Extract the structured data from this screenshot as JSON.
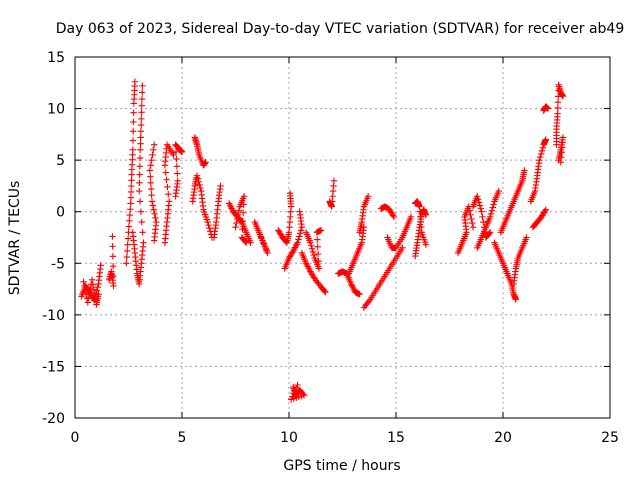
{
  "chart_data": {
    "type": "scatter",
    "title": "Day 063 of 2023, Sidereal Day-to-day VTEC variation (SDTVAR) for receiver ab49",
    "xlabel": "GPS time / hours",
    "ylabel": "SDTVAR / TECUs",
    "xlim": [
      0,
      25
    ],
    "ylim": [
      -20,
      15
    ],
    "xticks": [
      "0",
      "5",
      "10",
      "15",
      "20",
      "25"
    ],
    "yticks": [
      "-20",
      "-15",
      "-10",
      "-5",
      "0",
      "5",
      "10",
      "15"
    ],
    "grid": true,
    "marker": "+",
    "color": "#ff0000",
    "series": [
      {
        "name": "SDTVAR",
        "segments": [
          [
            [
              0.3,
              -8.2
            ],
            [
              0.5,
              -7.2
            ],
            [
              0.7,
              -7.8
            ],
            [
              0.9,
              -8.6
            ],
            [
              1.1,
              -7.0
            ],
            [
              1.2,
              -5.2
            ]
          ],
          [
            [
              0.4,
              -6.8
            ],
            [
              0.6,
              -8.8
            ],
            [
              0.8,
              -6.6
            ],
            [
              1.0,
              -9.0
            ],
            [
              1.1,
              -8.0
            ]
          ],
          [
            [
              1.6,
              -6.6
            ],
            [
              1.7,
              -5.8
            ],
            [
              1.8,
              -7.2
            ],
            [
              1.75,
              -2.4
            ]
          ],
          [
            [
              2.4,
              -5.0
            ],
            [
              2.5,
              -2.0
            ],
            [
              2.6,
              0.8
            ],
            [
              2.65,
              3.6
            ],
            [
              2.7,
              6.0
            ],
            [
              2.75,
              10.5
            ],
            [
              2.8,
              12.6
            ]
          ],
          [
            [
              2.7,
              -2.0
            ],
            [
              2.8,
              -4.0
            ],
            [
              2.9,
              -6.0
            ],
            [
              3.0,
              -7.0
            ],
            [
              3.1,
              -5.0
            ],
            [
              3.2,
              -3.0
            ],
            [
              3.0,
              2.0
            ],
            [
              3.05,
              6.0
            ],
            [
              3.1,
              9.0
            ],
            [
              3.15,
              12.2
            ]
          ],
          [
            [
              3.7,
              -2.8
            ],
            [
              3.8,
              -1.0
            ],
            [
              3.6,
              1.0
            ],
            [
              3.5,
              4.0
            ],
            [
              3.7,
              6.5
            ]
          ],
          [
            [
              4.2,
              -3.0
            ],
            [
              4.3,
              -1.0
            ],
            [
              4.4,
              1.0
            ],
            [
              4.2,
              4.5
            ],
            [
              4.3,
              6.5
            ],
            [
              4.6,
              5.5
            ]
          ],
          [
            [
              4.7,
              1.5
            ],
            [
              4.8,
              3.0
            ],
            [
              4.7,
              6.5
            ],
            [
              4.9,
              6.0
            ],
            [
              5.0,
              5.8
            ]
          ],
          [
            [
              5.6,
              7.2
            ],
            [
              5.7,
              6.5
            ],
            [
              5.8,
              5.5
            ],
            [
              6.0,
              4.5
            ],
            [
              6.1,
              4.8
            ]
          ],
          [
            [
              5.5,
              1.0
            ],
            [
              5.6,
              2.5
            ],
            [
              5.7,
              3.5
            ],
            [
              5.9,
              2.0
            ],
            [
              6.0,
              0.2
            ],
            [
              6.2,
              -1.0
            ],
            [
              6.4,
              -2.5
            ]
          ],
          [
            [
              6.5,
              -2.5
            ],
            [
              6.6,
              -1.0
            ],
            [
              6.7,
              1.0
            ],
            [
              6.8,
              2.5
            ]
          ],
          [
            [
              7.2,
              0.8
            ],
            [
              7.4,
              0.0
            ],
            [
              7.6,
              -0.5
            ],
            [
              7.8,
              -1.0
            ],
            [
              8.0,
              -2.0
            ],
            [
              8.2,
              -3.0
            ]
          ],
          [
            [
              7.5,
              -1.5
            ],
            [
              7.7,
              0.5
            ],
            [
              7.9,
              1.5
            ],
            [
              7.8,
              -2.5
            ],
            [
              8.0,
              -3.0
            ]
          ],
          [
            [
              8.4,
              -1.0
            ],
            [
              8.6,
              -2.0
            ],
            [
              8.8,
              -3.0
            ],
            [
              9.0,
              -4.0
            ],
            [
              8.7,
              -2.5
            ]
          ],
          [
            [
              9.5,
              -1.8
            ],
            [
              9.7,
              -2.5
            ],
            [
              9.9,
              -3.0
            ],
            [
              10.0,
              -2.0
            ],
            [
              10.1,
              0.5
            ],
            [
              10.05,
              1.8
            ]
          ],
          [
            [
              9.8,
              -5.5
            ],
            [
              10.0,
              -4.5
            ],
            [
              10.2,
              -3.8
            ],
            [
              10.4,
              -3.0
            ],
            [
              10.6,
              -1.5
            ],
            [
              10.5,
              0.0
            ]
          ],
          [
            [
              10.6,
              -4.0
            ],
            [
              10.8,
              -5.0
            ],
            [
              11.0,
              -5.8
            ],
            [
              11.2,
              -6.5
            ],
            [
              11.5,
              -7.3
            ],
            [
              11.7,
              -7.8
            ]
          ],
          [
            [
              10.8,
              -2.0
            ],
            [
              11.0,
              -3.0
            ],
            [
              11.2,
              -4.5
            ],
            [
              11.4,
              -5.5
            ],
            [
              11.3,
              -2.0
            ],
            [
              11.5,
              -1.8
            ]
          ],
          [
            [
              11.9,
              1.0
            ],
            [
              12.0,
              0.5
            ],
            [
              12.1,
              3.0
            ]
          ],
          [
            [
              12.3,
              -6.0
            ],
            [
              12.5,
              -5.8
            ],
            [
              12.7,
              -6.0
            ],
            [
              12.9,
              -7.0
            ],
            [
              13.1,
              -7.8
            ],
            [
              13.3,
              -8.0
            ]
          ],
          [
            [
              12.8,
              -6.0
            ],
            [
              13.0,
              -5.0
            ],
            [
              13.2,
              -4.0
            ],
            [
              13.4,
              -3.0
            ],
            [
              13.5,
              -1.5
            ]
          ],
          [
            [
              13.3,
              -2.0
            ],
            [
              13.4,
              -1.0
            ],
            [
              13.5,
              0.5
            ],
            [
              13.7,
              1.5
            ]
          ],
          [
            [
              13.5,
              -9.3
            ],
            [
              13.8,
              -8.5
            ],
            [
              14.1,
              -7.5
            ],
            [
              14.4,
              -6.5
            ],
            [
              14.7,
              -5.5
            ],
            [
              15.0,
              -4.5
            ],
            [
              15.3,
              -3.5
            ]
          ],
          [
            [
              14.3,
              0.3
            ],
            [
              14.5,
              0.5
            ],
            [
              14.7,
              0.2
            ],
            [
              14.9,
              -0.5
            ]
          ],
          [
            [
              14.6,
              -2.5
            ],
            [
              14.8,
              -3.5
            ],
            [
              15.0,
              -3.5
            ],
            [
              15.3,
              -2.5
            ],
            [
              15.5,
              -1.5
            ],
            [
              15.7,
              -0.5
            ]
          ],
          [
            [
              15.9,
              -4.3
            ],
            [
              16.0,
              -3.0
            ],
            [
              16.1,
              -1.5
            ],
            [
              16.2,
              -0.2
            ],
            [
              16.3,
              0.2
            ],
            [
              16.4,
              -0.3
            ]
          ],
          [
            [
              15.9,
              0.8
            ],
            [
              16.0,
              1.0
            ],
            [
              16.1,
              0.5
            ],
            [
              16.2,
              -2.0
            ],
            [
              16.4,
              -3.2
            ]
          ],
          [
            [
              17.9,
              -4.0
            ],
            [
              18.1,
              -3.0
            ],
            [
              18.3,
              -2.0
            ],
            [
              18.2,
              -0.5
            ],
            [
              18.4,
              0.5
            ],
            [
              18.6,
              -1.5
            ]
          ],
          [
            [
              18.8,
              -3.5
            ],
            [
              19.0,
              -2.5
            ],
            [
              19.2,
              -1.5
            ],
            [
              19.4,
              -0.5
            ],
            [
              19.6,
              1.0
            ],
            [
              19.8,
              2.0
            ]
          ],
          [
            [
              18.6,
              0.5
            ],
            [
              18.8,
              1.5
            ],
            [
              19.0,
              0.0
            ],
            [
              19.2,
              -2.5
            ],
            [
              19.4,
              -2.0
            ]
          ],
          [
            [
              19.6,
              -3.0
            ],
            [
              19.8,
              -4.0
            ],
            [
              20.0,
              -5.0
            ],
            [
              20.2,
              -6.0
            ],
            [
              20.4,
              -7.0
            ],
            [
              20.5,
              -8.0
            ],
            [
              20.6,
              -8.5
            ]
          ],
          [
            [
              19.9,
              -2.0
            ],
            [
              20.1,
              -1.0
            ],
            [
              20.3,
              0.0
            ],
            [
              20.5,
              1.0
            ],
            [
              20.7,
              2.0
            ],
            [
              20.9,
              3.0
            ],
            [
              21.0,
              4.0
            ]
          ],
          [
            [
              20.5,
              -7.0
            ],
            [
              20.6,
              -5.5
            ],
            [
              20.7,
              -4.5
            ],
            [
              20.9,
              -3.5
            ],
            [
              21.1,
              -2.5
            ]
          ],
          [
            [
              21.3,
              1.0
            ],
            [
              21.5,
              2.0
            ],
            [
              21.6,
              3.5
            ],
            [
              21.7,
              5.0
            ],
            [
              21.9,
              6.5
            ],
            [
              22.0,
              7.0
            ]
          ],
          [
            [
              21.4,
              -1.5
            ],
            [
              21.6,
              -1.0
            ],
            [
              21.8,
              -0.5
            ],
            [
              22.0,
              0.2
            ]
          ],
          [
            [
              21.9,
              9.8
            ],
            [
              22.0,
              10.2
            ],
            [
              22.1,
              10.0
            ]
          ],
          [
            [
              22.5,
              6.5
            ],
            [
              22.5,
              8.0
            ],
            [
              22.55,
              9.5
            ],
            [
              22.6,
              12.3
            ],
            [
              22.7,
              11.5
            ],
            [
              22.8,
              11.2
            ]
          ],
          [
            [
              22.6,
              5.0
            ],
            [
              22.7,
              6.0
            ],
            [
              22.8,
              7.2
            ],
            [
              22.7,
              4.8
            ]
          ],
          [
            [
              10.2,
              -17.0
            ],
            [
              10.3,
              -17.8
            ],
            [
              10.5,
              -17.3
            ],
            [
              10.7,
              -17.8
            ],
            [
              10.1,
              -18.2
            ],
            [
              10.4,
              -16.8
            ]
          ]
        ]
      }
    ]
  }
}
